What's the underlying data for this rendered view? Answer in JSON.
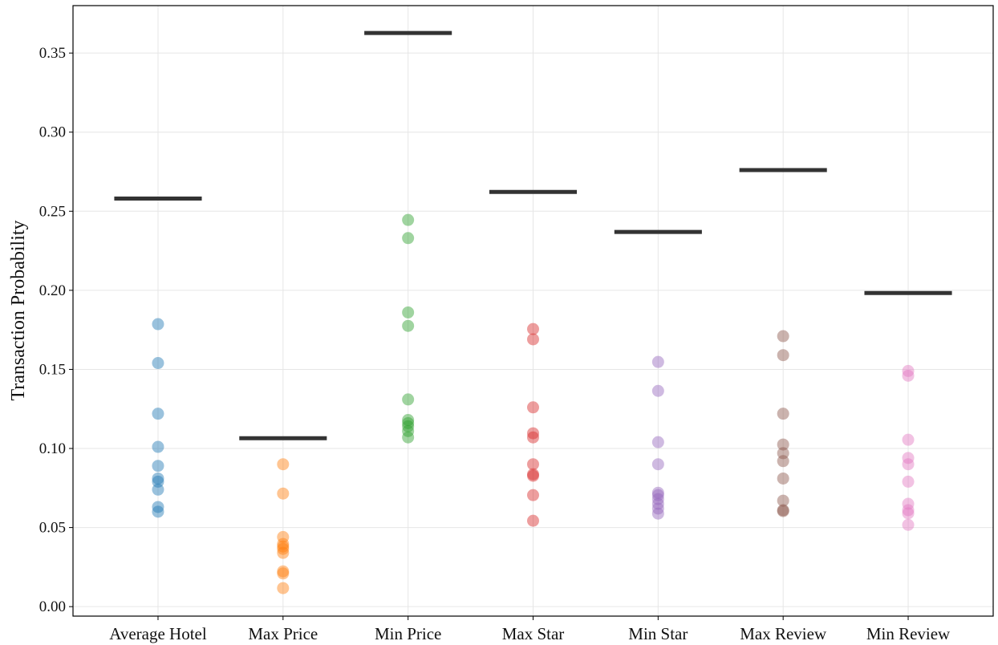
{
  "chart_data": {
    "type": "strip",
    "ylabel": "Transaction Probability",
    "categories": [
      "Average Hotel",
      "Max Price",
      "Min Price",
      "Max Star",
      "Min Star",
      "Max Review",
      "Min Review"
    ],
    "colors": [
      "#1f77b4",
      "#ff7f0e",
      "#2ca02c",
      "#d62728",
      "#9467bd",
      "#8c564b",
      "#e377c2"
    ],
    "values": [
      [
        0.1786,
        0.154,
        0.122,
        0.101,
        0.089,
        0.081,
        0.079,
        0.074,
        0.063,
        0.06
      ],
      [
        0.09,
        0.0715,
        0.044,
        0.0396,
        0.038,
        0.0365,
        0.034,
        0.0223,
        0.021,
        0.0117
      ],
      [
        0.2445,
        0.233,
        0.186,
        0.1775,
        0.131,
        0.118,
        0.116,
        0.114,
        0.111,
        0.107
      ],
      [
        0.1755,
        0.169,
        0.126,
        0.1096,
        0.107,
        0.09,
        0.0837,
        0.0827,
        0.0705,
        0.0543
      ],
      [
        0.1547,
        0.1364,
        0.104,
        0.09,
        0.072,
        0.0705,
        0.068,
        0.065,
        0.062,
        0.0588
      ],
      [
        0.171,
        0.159,
        0.122,
        0.1025,
        0.097,
        0.092,
        0.081,
        0.067,
        0.061,
        0.0604
      ],
      [
        0.149,
        0.146,
        0.1055,
        0.094,
        0.09,
        0.079,
        0.065,
        0.061,
        0.059,
        0.0517
      ]
    ],
    "line_values": [
      0.258,
      0.1065,
      0.3627,
      0.2622,
      0.2369,
      0.276,
      0.1983
    ],
    "line_color": "#333333",
    "ylim": [
      -0.006,
      0.38
    ],
    "yticks": [
      {
        "value": 0,
        "label": "0.00"
      },
      {
        "value": 0.05,
        "label": "0.05"
      },
      {
        "value": 0.1,
        "label": "0.10"
      },
      {
        "value": 0.15,
        "label": "0.15"
      },
      {
        "value": 0.2,
        "label": "0.20"
      },
      {
        "value": 0.25,
        "label": "0.25"
      },
      {
        "value": 0.3,
        "label": "0.30"
      },
      {
        "value": 0.35,
        "label": "0.35"
      }
    ],
    "grid": true
  }
}
